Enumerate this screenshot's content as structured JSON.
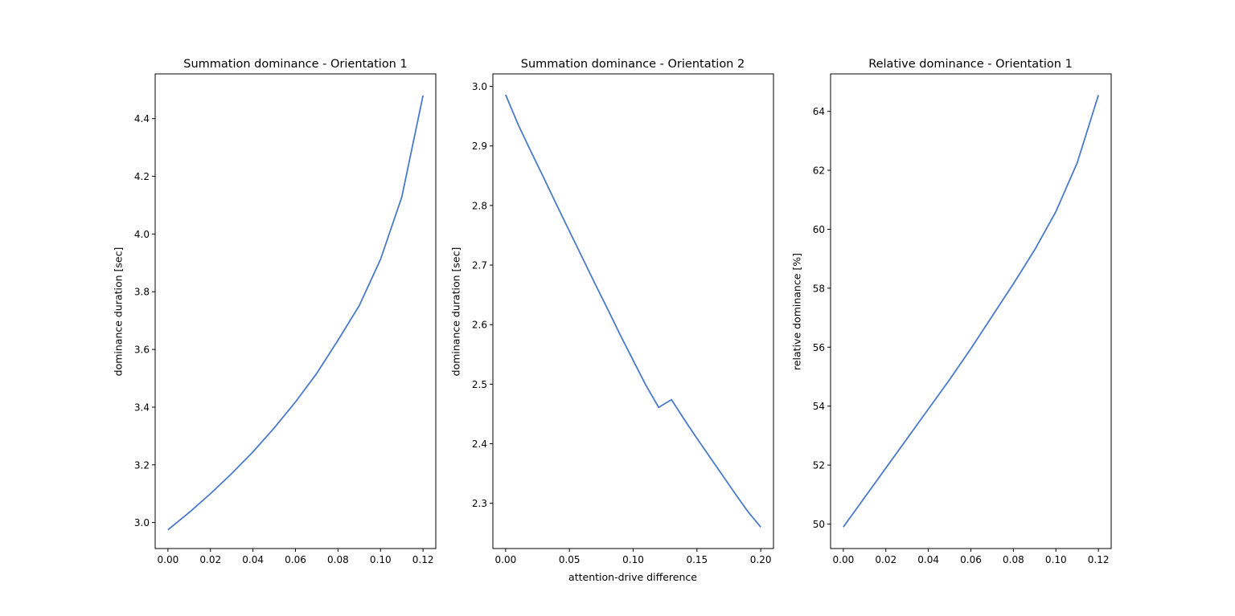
{
  "figure": {
    "line_color": "#4a7ac8"
  },
  "chart_data": [
    {
      "type": "line",
      "title": "Summation dominance - Orientation 1",
      "xlabel": "",
      "ylabel": "dominance duration [sec]",
      "xlim": [
        -0.006,
        0.126
      ],
      "ylim": [
        2.91,
        4.555
      ],
      "xticks": [
        0.0,
        0.02,
        0.04,
        0.06,
        0.08,
        0.1,
        0.12
      ],
      "xtick_labels": [
        "0.00",
        "0.02",
        "0.04",
        "0.06",
        "0.08",
        "0.10",
        "0.12"
      ],
      "yticks": [
        3.0,
        3.2,
        3.4,
        3.6,
        3.8,
        4.0,
        4.2,
        4.4
      ],
      "ytick_labels": [
        "3.0",
        "3.2",
        "3.4",
        "3.6",
        "3.8",
        "4.0",
        "4.2",
        "4.4"
      ],
      "series": [
        {
          "x": [
            0.0,
            0.01,
            0.02,
            0.03,
            0.04,
            0.05,
            0.06,
            0.07,
            0.08,
            0.09,
            0.1,
            0.11,
            0.12
          ],
          "values": [
            2.975,
            3.035,
            3.1,
            3.17,
            3.245,
            3.328,
            3.418,
            3.517,
            3.632,
            3.752,
            3.912,
            4.128,
            4.48
          ]
        }
      ]
    },
    {
      "type": "line",
      "title": "Summation dominance - Orientation 2",
      "xlabel": "attention-drive difference",
      "ylabel": "dominance duration [sec]",
      "xlim": [
        -0.01,
        0.21
      ],
      "ylim": [
        2.224,
        3.021
      ],
      "xticks": [
        0.0,
        0.05,
        0.1,
        0.15,
        0.2
      ],
      "xtick_labels": [
        "0.00",
        "0.05",
        "0.10",
        "0.15",
        "0.20"
      ],
      "yticks": [
        2.3,
        2.4,
        2.5,
        2.6,
        2.7,
        2.8,
        2.9,
        3.0
      ],
      "ytick_labels": [
        "2.3",
        "2.4",
        "2.5",
        "2.6",
        "2.7",
        "2.8",
        "2.9",
        "3.0"
      ],
      "series": [
        {
          "x": [
            0.0,
            0.01,
            0.02,
            0.03,
            0.04,
            0.05,
            0.06,
            0.07,
            0.08,
            0.09,
            0.1,
            0.11,
            0.12,
            0.13,
            0.14,
            0.15,
            0.16,
            0.17,
            0.18,
            0.19,
            0.2
          ],
          "values": [
            2.986,
            2.935,
            2.89,
            2.846,
            2.801,
            2.757,
            2.713,
            2.669,
            2.626,
            2.582,
            2.54,
            2.498,
            2.461,
            2.474,
            2.441,
            2.409,
            2.378,
            2.347,
            2.316,
            2.286,
            2.26
          ]
        }
      ]
    },
    {
      "type": "line",
      "title": "Relative dominance - Orientation 1",
      "xlabel": "",
      "ylabel": "relative dominance [%]",
      "xlim": [
        -0.006,
        0.126
      ],
      "ylim": [
        49.17,
        65.27
      ],
      "xticks": [
        0.0,
        0.02,
        0.04,
        0.06,
        0.08,
        0.1,
        0.12
      ],
      "xtick_labels": [
        "0.00",
        "0.02",
        "0.04",
        "0.06",
        "0.08",
        "0.10",
        "0.12"
      ],
      "yticks": [
        50,
        52,
        54,
        56,
        58,
        60,
        62,
        64
      ],
      "ytick_labels": [
        "50",
        "52",
        "54",
        "56",
        "58",
        "60",
        "62",
        "64"
      ],
      "series": [
        {
          "x": [
            0.0,
            0.01,
            0.02,
            0.03,
            0.04,
            0.05,
            0.06,
            0.07,
            0.08,
            0.09,
            0.1,
            0.11,
            0.12
          ],
          "values": [
            49.9,
            50.9,
            51.9,
            52.9,
            53.9,
            54.9,
            55.95,
            57.05,
            58.15,
            59.3,
            60.6,
            62.25,
            64.55
          ]
        }
      ]
    }
  ]
}
